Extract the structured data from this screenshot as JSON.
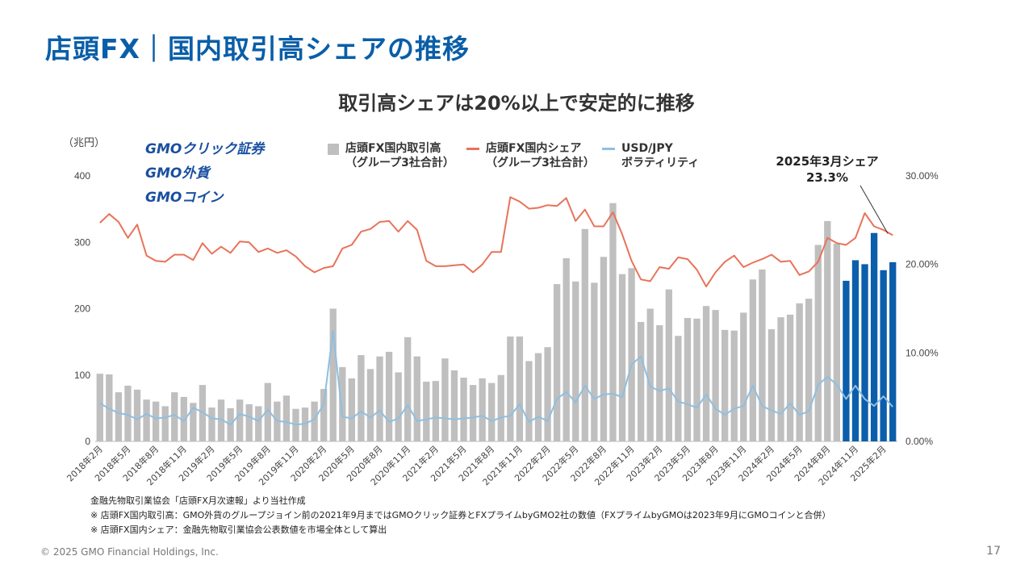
{
  "page": {
    "title": "店頭FX｜国内取引高シェアの推移",
    "subtitle": "取引高シェアは20%以上で安定的に推移",
    "unit_label": "（兆円）",
    "logos": [
      "GMOクリック証券",
      "GMO外貨",
      "GMOコイン"
    ],
    "callout_line1": "2025年3月シェア",
    "callout_line2": "23.3%",
    "notes": [
      "金融先物取引業協会「店頭FX月次速報」より当社作成",
      "※ 店頭FX国内取引高：GMO外貨のグループジョイン前の2021年9月まではGMOクリック証券とFXプライムbyGMO2社の数値（FXプライムbyGMOは2023年9月にGMOコインと合併）",
      "※ 店頭FX国内シェア：金融先物取引業協会公表数値を市場全体として算出"
    ],
    "footer": "© 2025 GMO Financial Holdings, Inc.",
    "page_number": "17"
  },
  "legend": [
    {
      "line1": "店頭FX国内取引高",
      "line2": "（グループ3社合計）",
      "color": "#bfbfbf",
      "kind": "bar"
    },
    {
      "line1": "店頭FX国内シェア",
      "line2": "（グループ3社合計）",
      "color": "#e8735a",
      "kind": "line"
    },
    {
      "line1": "USD/JPY",
      "line2": "ボラティリティ",
      "color": "#8fbfe0",
      "kind": "line"
    }
  ],
  "chart_data": {
    "type": "bar+line",
    "start_month": "2018-02",
    "ylim_left": [
      0,
      400
    ],
    "yticks_left": [
      "0",
      "100",
      "200",
      "300",
      "400"
    ],
    "ylim_right": [
      0,
      30
    ],
    "yticks_right": [
      "0.00%",
      "10.00%",
      "20.00%",
      "30.00%"
    ],
    "x_tick_labels": [
      "2018年2月",
      "2018年5月",
      "2018年8月",
      "2018年11月",
      "2019年2月",
      "2019年5月",
      "2019年8月",
      "2019年11月",
      "2020年2月",
      "2020年5月",
      "2020年8月",
      "2020年11月",
      "2021年2月",
      "2021年5月",
      "2021年8月",
      "2021年11月",
      "2022年2月",
      "2022年5月",
      "2022年8月",
      "2022年11月",
      "2023年2月",
      "2023年5月",
      "2023年8月",
      "2023年11月",
      "2024年2月",
      "2024年5月",
      "2024年8月",
      "2024年11月",
      "2025年2月"
    ],
    "colors": {
      "bar": "#bfbfbf",
      "bar_recent": "#0b5eab",
      "share": "#e8735a",
      "volatility": "#8fbfe0"
    },
    "highlight_last_n": 6,
    "volume": [
      102,
      101,
      74,
      84,
      78,
      63,
      60,
      53,
      74,
      67,
      58,
      85,
      51,
      63,
      50,
      63,
      56,
      53,
      88,
      60,
      69,
      49,
      51,
      60,
      79,
      200,
      112,
      95,
      130,
      109,
      128,
      135,
      104,
      157,
      128,
      90,
      91,
      125,
      107,
      96,
      85,
      95,
      88,
      100,
      158,
      158,
      121,
      133,
      142,
      237,
      276,
      241,
      320,
      239,
      278,
      359,
      252,
      261,
      180,
      200,
      175,
      229,
      159,
      186,
      185,
      204,
      198,
      168,
      167,
      194,
      244,
      259,
      169,
      187,
      191,
      208,
      215,
      296,
      332,
      298,
      242,
      273,
      267,
      314,
      258,
      270
    ],
    "share": [
      24.7,
      25.7,
      24.8,
      23.0,
      24.5,
      21.0,
      20.4,
      20.3,
      21.1,
      21.1,
      20.5,
      22.4,
      21.2,
      22.0,
      21.3,
      22.6,
      22.5,
      21.4,
      21.8,
      21.3,
      21.6,
      20.9,
      19.8,
      19.1,
      19.6,
      19.8,
      21.8,
      22.2,
      23.7,
      24.0,
      24.8,
      24.9,
      23.7,
      24.9,
      23.9,
      20.4,
      19.8,
      19.8,
      19.9,
      20.0,
      19.1,
      20.0,
      21.4,
      21.4,
      27.6,
      27.1,
      26.3,
      26.4,
      26.7,
      26.6,
      27.5,
      24.9,
      26.2,
      24.3,
      24.3,
      25.9,
      23.4,
      20.4,
      18.3,
      18.1,
      19.7,
      19.5,
      20.8,
      20.6,
      19.4,
      17.5,
      19.1,
      20.3,
      21.0,
      19.7,
      20.2,
      20.6,
      21.1,
      20.3,
      20.4,
      18.8,
      19.2,
      20.3,
      23.0,
      22.4,
      22.2,
      23.0,
      25.8,
      24.3,
      23.9,
      23.3
    ],
    "volatility": [
      4.3,
      3.7,
      3.2,
      3.0,
      2.5,
      3.1,
      2.6,
      2.7,
      3.0,
      2.3,
      3.8,
      3.3,
      2.6,
      2.5,
      1.9,
      3.1,
      2.8,
      2.3,
      3.6,
      2.3,
      2.2,
      1.9,
      2.0,
      2.5,
      4.2,
      12.5,
      2.8,
      2.6,
      3.4,
      2.7,
      3.5,
      2.2,
      2.6,
      4.1,
      2.3,
      2.5,
      2.7,
      2.6,
      2.5,
      2.6,
      2.7,
      2.9,
      2.3,
      2.7,
      2.9,
      4.2,
      2.2,
      2.8,
      2.3,
      4.8,
      5.6,
      4.4,
      6.3,
      4.8,
      5.3,
      5.4,
      5.0,
      8.7,
      9.6,
      6.2,
      5.7,
      6.0,
      4.5,
      4.2,
      3.8,
      5.3,
      3.7,
      3.0,
      3.7,
      4.0,
      6.3,
      4.0,
      3.5,
      3.1,
      4.3,
      3.0,
      3.4,
      6.4,
      7.3,
      6.4,
      4.8,
      6.3,
      4.8,
      4.0,
      5.1,
      3.9
    ]
  }
}
